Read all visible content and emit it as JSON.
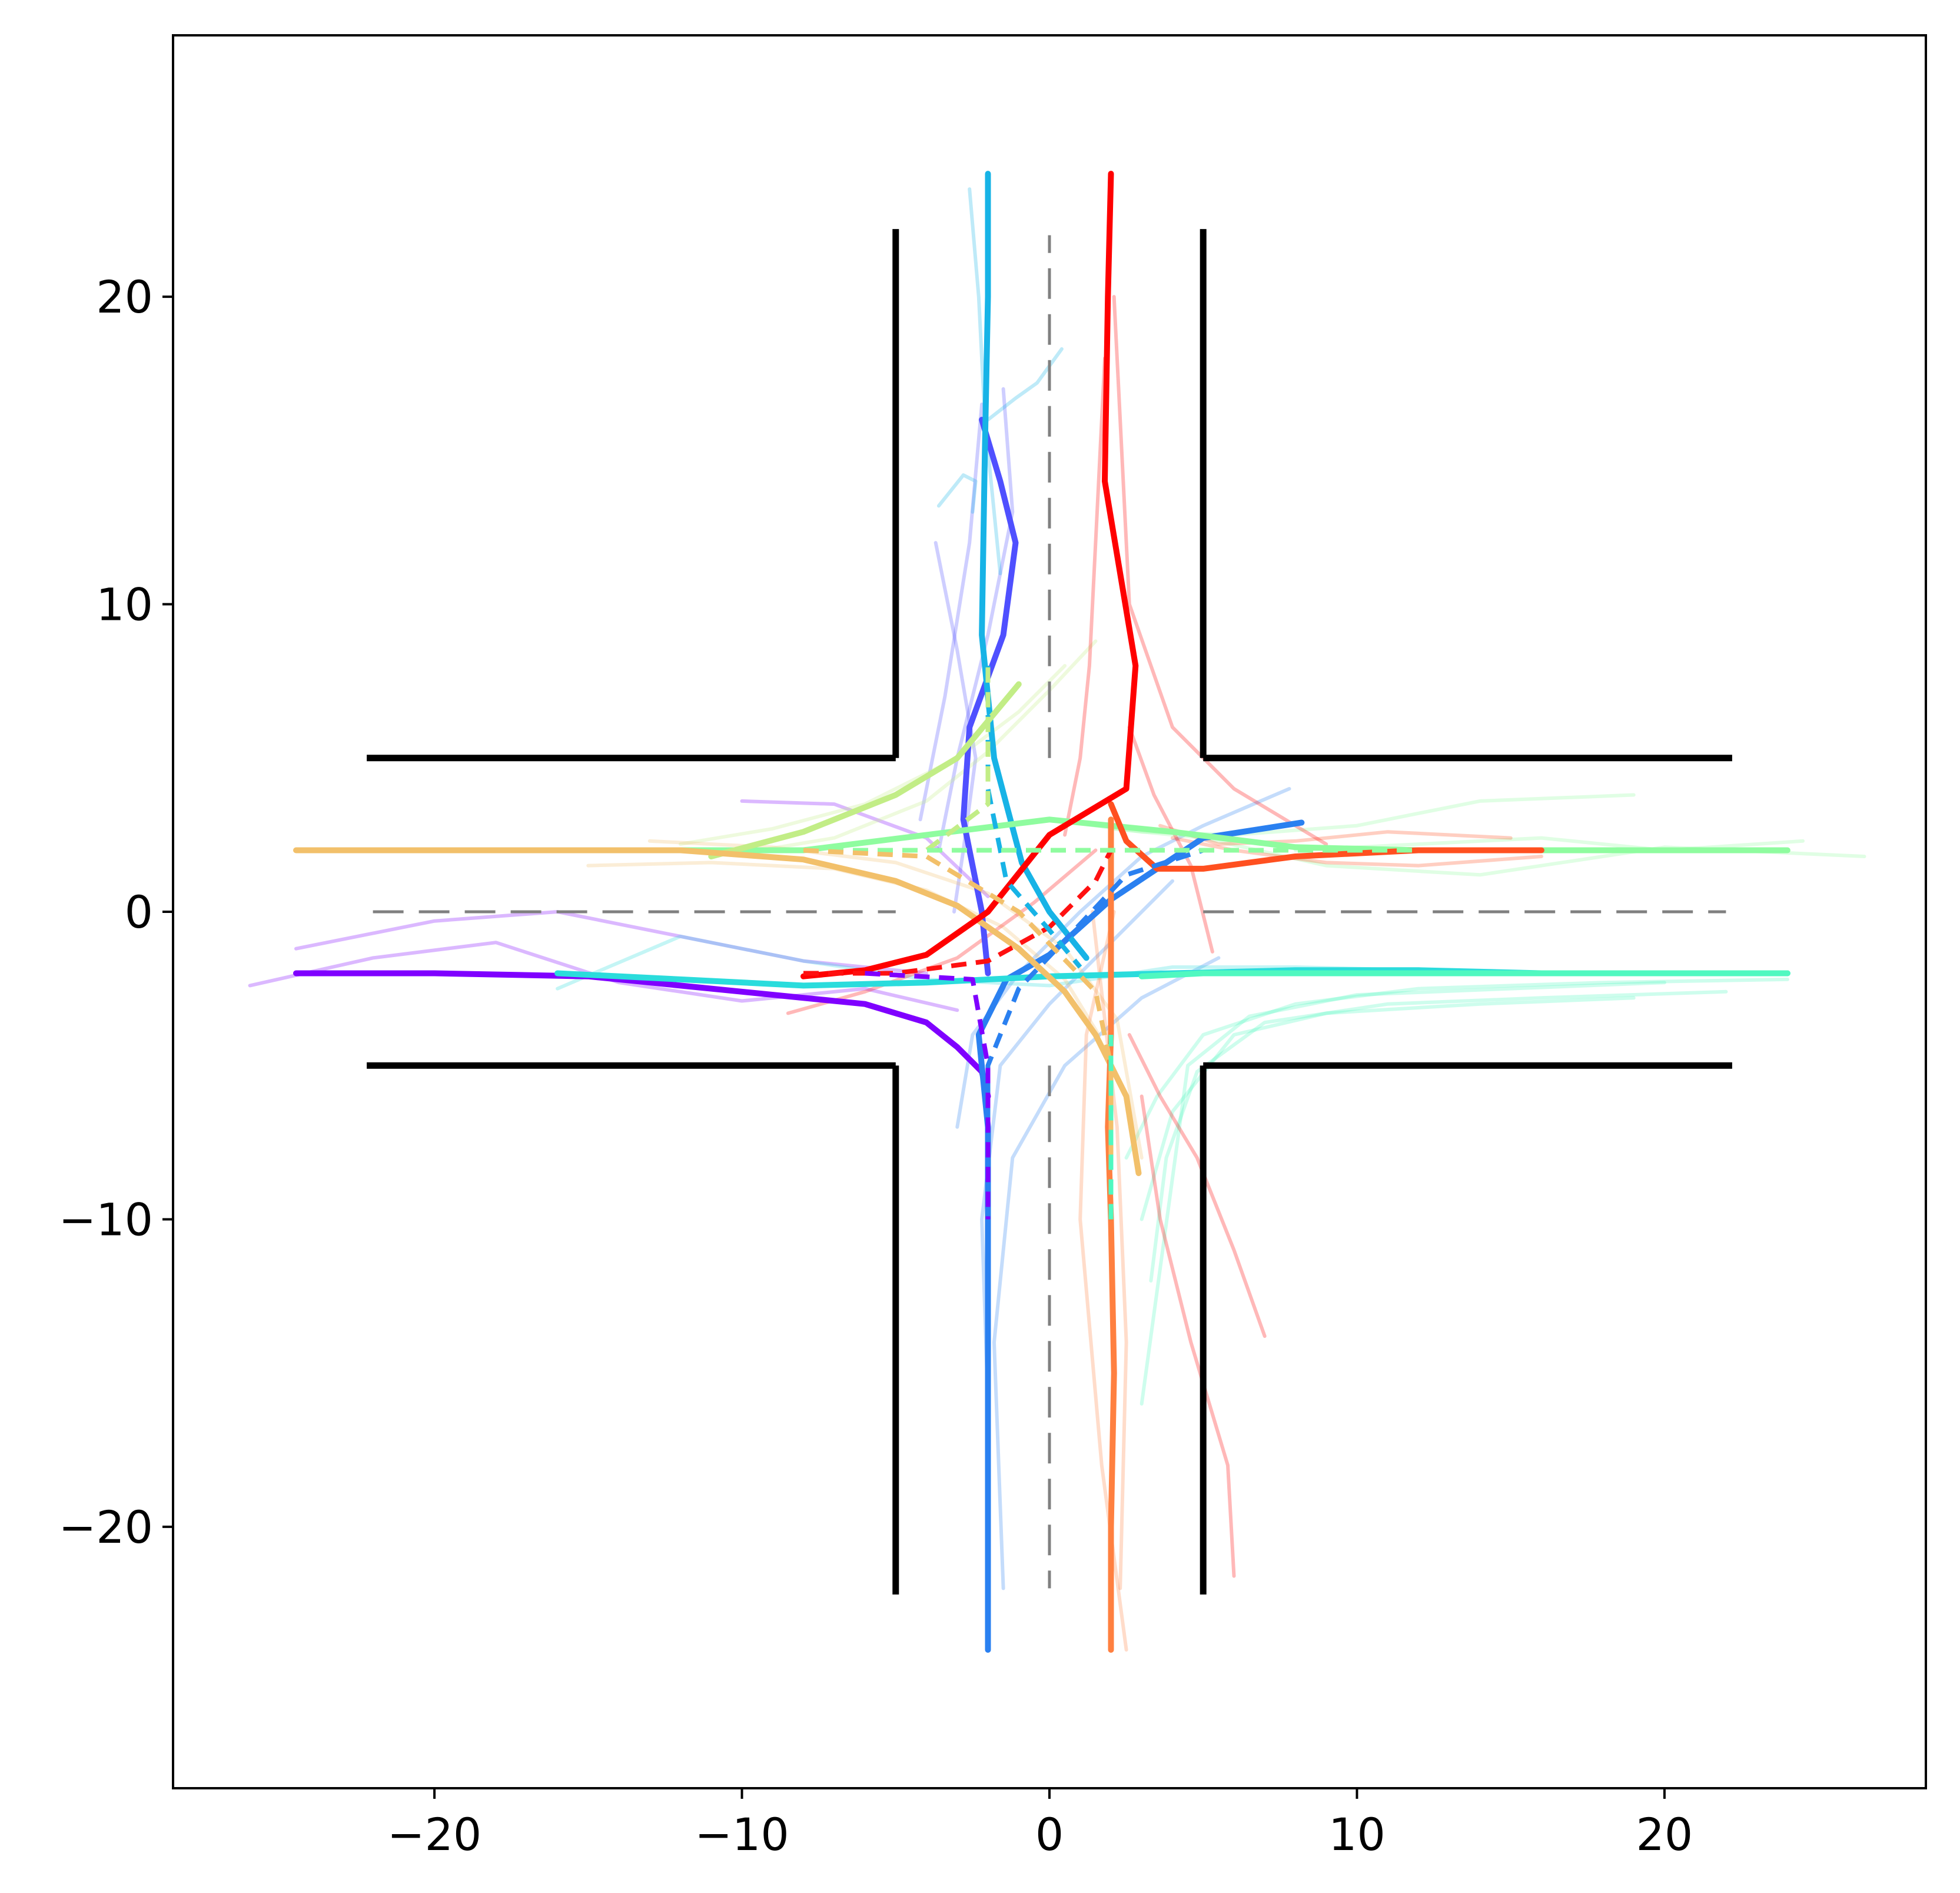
{
  "chart_data": {
    "type": "line",
    "title": "",
    "xlabel": "",
    "ylabel": "",
    "xlim": [
      -28.5,
      28.5
    ],
    "ylim": [
      -28.5,
      28.5
    ],
    "grid": false,
    "legend": "none",
    "x_ticks": [
      {
        "value": -20,
        "label": "−20"
      },
      {
        "value": -10,
        "label": "−10"
      },
      {
        "value": 0,
        "label": "0"
      },
      {
        "value": 10,
        "label": "10"
      },
      {
        "value": 20,
        "label": "20"
      }
    ],
    "y_ticks": [
      {
        "value": 20,
        "label": "20"
      },
      {
        "value": 10,
        "label": "10"
      },
      {
        "value": 0,
        "label": "0"
      },
      {
        "value": -10,
        "label": "−10"
      },
      {
        "value": -20,
        "label": "−20"
      }
    ],
    "road_boundaries": [
      {
        "name": "northwest-horizontal",
        "x": [
          -22.2,
          -5
        ],
        "y": [
          5,
          5
        ]
      },
      {
        "name": "northwest-vertical",
        "x": [
          -5,
          -5
        ],
        "y": [
          5,
          22.2
        ]
      },
      {
        "name": "northeast-horizontal",
        "x": [
          5,
          22.2
        ],
        "y": [
          5,
          5
        ]
      },
      {
        "name": "northeast-vertical",
        "x": [
          5,
          5
        ],
        "y": [
          5,
          22.2
        ]
      },
      {
        "name": "southwest-horizontal",
        "x": [
          -22.2,
          -5
        ],
        "y": [
          -5,
          -5
        ]
      },
      {
        "name": "southwest-vertical",
        "x": [
          -5,
          -5
        ],
        "y": [
          -5,
          -22.2
        ]
      },
      {
        "name": "southeast-horizontal",
        "x": [
          5,
          22.2
        ],
        "y": [
          -5,
          -5
        ]
      },
      {
        "name": "southeast-vertical",
        "x": [
          5,
          5
        ],
        "y": [
          -5,
          -22.2
        ]
      }
    ],
    "center_lines": [
      {
        "name": "center-line-west",
        "x": [
          -22,
          -5
        ],
        "y": [
          0,
          0
        ]
      },
      {
        "name": "center-line-east",
        "x": [
          5,
          22
        ],
        "y": [
          0,
          0
        ]
      },
      {
        "name": "center-line-north",
        "x": [
          0,
          0
        ],
        "y": [
          5,
          22
        ]
      },
      {
        "name": "center-line-south",
        "x": [
          0,
          0
        ],
        "y": [
          -5,
          -22
        ]
      }
    ],
    "series": [
      {
        "color": "#7f00ff",
        "x": [
          -24.5,
          -20,
          -15,
          -10,
          -6,
          -4,
          -3,
          -2.2,
          -2
        ],
        "y": [
          -2,
          -2,
          -2.1,
          -2.6,
          -3,
          -3.6,
          -4.4,
          -5.2,
          -6
        ]
      },
      {
        "color": "#4f50ff",
        "x": [
          -2,
          -2.2,
          -2.8,
          -2.6,
          -1.5,
          -1.1,
          -1.6,
          -2.2
        ],
        "y": [
          -2,
          0,
          3,
          6,
          9,
          12,
          14,
          16
        ]
      },
      {
        "color": "#2a80f0",
        "x": [
          -2,
          -2,
          -2,
          -2,
          -2,
          -2.3,
          -1.4,
          0,
          2,
          5,
          8.2
        ],
        "y": [
          -24,
          -20,
          -15,
          -10,
          -7,
          -4,
          -2.2,
          -1.4,
          0.4,
          2.4,
          2.9
        ]
      },
      {
        "color": "#17b3e6",
        "x": [
          -2,
          -2,
          -2.1,
          -2.2,
          -1.8,
          -0.9,
          0,
          1.2
        ],
        "y": [
          24,
          20,
          15,
          9,
          5,
          1.6,
          0,
          -1.5
        ]
      },
      {
        "color": "#2adcdc",
        "x": [
          -16,
          -12,
          -8,
          -4,
          0,
          4,
          8,
          12,
          16,
          20,
          24
        ],
        "y": [
          -2,
          -2.2,
          -2.4,
          -2.3,
          -2.1,
          -2,
          -1.9,
          -1.9,
          -2,
          -2,
          -2
        ]
      },
      {
        "color": "#50f8c0",
        "x": [
          24,
          20,
          16,
          12,
          8,
          5,
          3
        ],
        "y": [
          -2,
          -2,
          -2,
          -2,
          -2,
          -2,
          -2.1
        ]
      },
      {
        "color": "#8ffc9f",
        "x": [
          -12,
          -8,
          -4,
          0,
          4,
          8,
          12,
          16,
          20,
          24
        ],
        "y": [
          2,
          2,
          2.5,
          3,
          2.6,
          2.1,
          2,
          2,
          2,
          2
        ]
      },
      {
        "color": "#c2ed86",
        "x": [
          -11,
          -8,
          -5,
          -3,
          -2,
          -1
        ],
        "y": [
          1.8,
          2.6,
          3.8,
          5,
          6.2,
          7.4
        ]
      },
      {
        "color": "#f2c06a",
        "x": [
          -24.5,
          -20,
          -15,
          -12,
          -8,
          -5,
          -3,
          -1,
          0.5,
          1.5,
          2.5,
          2.9
        ],
        "y": [
          2,
          2,
          2,
          2,
          1.7,
          1,
          0.2,
          -1.2,
          -2.6,
          -4,
          -6,
          -8.5
        ]
      },
      {
        "color": "#ff8040",
        "x": [
          2,
          2,
          2.1,
          2,
          1.9,
          2,
          2,
          2
        ],
        "y": [
          -24,
          -20,
          -15,
          -10,
          -7,
          -4,
          -1,
          3
        ]
      },
      {
        "color": "#ff5020",
        "x": [
          16,
          12,
          8,
          5,
          3.5,
          2.5,
          2
        ],
        "y": [
          2,
          2,
          1.8,
          1.4,
          1.4,
          2.3,
          3.5
        ]
      },
      {
        "color": "#ff0000",
        "x": [
          2,
          1.9,
          1.8,
          2.8,
          2.5,
          0,
          -2,
          -4,
          -6,
          -8
        ],
        "y": [
          24,
          20,
          14,
          8,
          4,
          2.5,
          0,
          -1.4,
          -1.9,
          -2.1
        ]
      }
    ],
    "reference_paths": [
      {
        "color": "#ff1010",
        "x": [
          -8,
          -5,
          -2,
          0,
          1.5,
          2
        ],
        "y": [
          -2,
          -2,
          -1.6,
          -0.5,
          1,
          2
        ]
      },
      {
        "color": "#ff8040",
        "x": [
          2,
          2,
          2
        ],
        "y": [
          -10,
          -3,
          3
        ]
      },
      {
        "color": "#2a80f0",
        "x": [
          -2,
          -2,
          -1,
          1,
          2.5,
          5
        ],
        "y": [
          -10,
          -5,
          -2.5,
          -0.4,
          1.2,
          2
        ]
      },
      {
        "color": "#17b3e6",
        "x": [
          -2,
          -2,
          -1.4,
          0,
          1
        ],
        "y": [
          8,
          4,
          1,
          -0.6,
          -1.8
        ]
      },
      {
        "color": "#c2ed86",
        "x": [
          -8,
          -4,
          -2,
          -2
        ],
        "y": [
          2,
          2,
          3.5,
          8
        ]
      },
      {
        "color": "#8ffc9f",
        "x": [
          -8,
          0,
          8,
          12
        ],
        "y": [
          2,
          2,
          2,
          2
        ]
      },
      {
        "color": "#f2c06a",
        "x": [
          -8,
          -4,
          -1,
          1.5,
          2,
          2
        ],
        "y": [
          2,
          1.8,
          0,
          -2.6,
          -5,
          -8
        ]
      },
      {
        "color": "#50f8c0",
        "x": [
          2,
          2
        ],
        "y": [
          -10,
          -4
        ]
      },
      {
        "color": "#7f00ff",
        "x": [
          -6,
          -2.5,
          -2,
          -2
        ],
        "y": [
          -2,
          -2.2,
          -5,
          -10
        ]
      }
    ],
    "sample_trajectories": [
      {
        "color": "#7f00ff",
        "x": [
          -26,
          -22,
          -18,
          -14,
          -10,
          -6,
          -3
        ],
        "y": [
          -2.4,
          -1.5,
          -1,
          -2.3,
          -2.9,
          -2.5,
          -3.2
        ]
      },
      {
        "color": "#7f00ff",
        "x": [
          -24.5,
          -20,
          -16,
          -12,
          -8,
          -4
        ],
        "y": [
          -1.2,
          -0.3,
          0,
          -0.8,
          -1.6,
          -2
        ]
      },
      {
        "color": "#7f00ff",
        "x": [
          -10,
          -7,
          -4,
          -2
        ],
        "y": [
          3.6,
          3.5,
          2.4,
          0.5
        ]
      },
      {
        "color": "#4f50ff",
        "x": [
          -1.5,
          -1.2,
          -2,
          -3,
          -3.6
        ],
        "y": [
          17,
          13,
          9,
          5,
          2
        ]
      },
      {
        "color": "#4f50ff",
        "x": [
          -3.7,
          -3,
          -2.4,
          -2.8,
          -3.1
        ],
        "y": [
          12,
          8.5,
          5,
          2,
          0
        ]
      },
      {
        "color": "#4f50ff",
        "x": [
          -2.2,
          -2.6,
          -3.4,
          -4.2
        ],
        "y": [
          16.5,
          12,
          7,
          3
        ]
      },
      {
        "color": "#2a80f0",
        "x": [
          -3,
          -2.5,
          -1,
          1,
          3,
          5,
          7.8
        ],
        "y": [
          -7,
          -4,
          -2,
          0,
          1.8,
          2.8,
          4
        ]
      },
      {
        "color": "#2a80f0",
        "x": [
          -2,
          -2.2,
          -1.6,
          0,
          2,
          4
        ],
        "y": [
          -16,
          -10,
          -5,
          -3,
          -1,
          1
        ]
      },
      {
        "color": "#2a80f0",
        "x": [
          -1.5,
          -1.8,
          -1.2,
          0.5,
          3,
          5.5
        ],
        "y": [
          -22,
          -14,
          -8,
          -5,
          -2.8,
          -1.5
        ]
      },
      {
        "color": "#17b3e6",
        "x": [
          -2.6,
          -2.3,
          -2.1,
          -1.6
        ],
        "y": [
          23.5,
          20,
          16,
          11
        ]
      },
      {
        "color": "#17b3e6",
        "x": [
          0.4,
          -0.4,
          -1.1,
          -2
        ],
        "y": [
          18.3,
          17.2,
          16.7,
          16
        ]
      },
      {
        "color": "#17b3e6",
        "x": [
          -3.6,
          -2.8,
          -2.4,
          -2.5
        ],
        "y": [
          13.2,
          14.2,
          14,
          13
        ]
      },
      {
        "color": "#2adcdc",
        "x": [
          -16,
          -12,
          -8,
          -4,
          0,
          4,
          8,
          12
        ],
        "y": [
          -2.5,
          -0.8,
          -1.6,
          -2.2,
          -2.4,
          -1.8,
          -1.8,
          -1.9
        ]
      },
      {
        "color": "#50f8c0",
        "x": [
          24,
          18,
          12,
          8,
          5,
          3.5,
          2.5
        ],
        "y": [
          -2.2,
          -2.3,
          -2.5,
          -3,
          -4,
          -6,
          -8
        ]
      },
      {
        "color": "#50f8c0",
        "x": [
          22,
          16,
          11,
          7,
          4.8,
          3.8,
          3.3
        ],
        "y": [
          -2.6,
          -2.8,
          -3,
          -3.6,
          -5.2,
          -8,
          -12
        ]
      },
      {
        "color": "#50f8c0",
        "x": [
          20,
          15,
          10,
          6.5,
          4.5,
          3
        ],
        "y": [
          -2.3,
          -2.5,
          -2.7,
          -3.4,
          -5,
          -16
        ]
      },
      {
        "color": "#50f8c0",
        "x": [
          19,
          14,
          9,
          6,
          4,
          3
        ],
        "y": [
          -2.8,
          -3,
          -3.3,
          -4,
          -6.5,
          -10
        ]
      },
      {
        "color": "#8ffc9f",
        "x": [
          19,
          14,
          10,
          6,
          3,
          0
        ],
        "y": [
          3.8,
          3.6,
          2.8,
          2.5,
          2.6,
          3
        ]
      },
      {
        "color": "#8ffc9f",
        "x": [
          26.5,
          20,
          14,
          9,
          5,
          2
        ],
        "y": [
          1.8,
          2.1,
          1.2,
          1.5,
          2.4,
          2.7
        ]
      },
      {
        "color": "#8ffc9f",
        "x": [
          24.5,
          20,
          16,
          12,
          8
        ],
        "y": [
          2.3,
          2,
          2.4,
          2.2,
          2
        ]
      },
      {
        "color": "#c2ed86",
        "x": [
          -12,
          -9,
          -6,
          -3,
          -1,
          0.5
        ],
        "y": [
          2.2,
          2.7,
          3.5,
          5,
          6.5,
          8
        ]
      },
      {
        "color": "#c2ed86",
        "x": [
          -10,
          -7,
          -4,
          -2,
          0,
          1.5
        ],
        "y": [
          1.9,
          2.4,
          3.6,
          5.2,
          7.2,
          8.8
        ]
      },
      {
        "color": "#f2c06a",
        "x": [
          -15,
          -11,
          -7,
          -4,
          -1.5,
          0.5,
          1.6
        ],
        "y": [
          1.5,
          1.6,
          1.4,
          0.7,
          -0.5,
          -2.2,
          -4
        ]
      },
      {
        "color": "#f2c06a",
        "x": [
          -13,
          -9,
          -5,
          -2,
          0.5,
          2.2,
          3
        ],
        "y": [
          2.3,
          2.1,
          1.6,
          0.6,
          -1.2,
          -3.5,
          -8
        ]
      },
      {
        "color": "#ff8040",
        "x": [
          2.5,
          1.7,
          1,
          1.2,
          2.1
        ],
        "y": [
          -24,
          -18,
          -10,
          -4,
          0
        ]
      },
      {
        "color": "#ff8040",
        "x": [
          2.3,
          2.5,
          2.2,
          1.4
        ],
        "y": [
          -22,
          -14,
          -7,
          0
        ]
      },
      {
        "color": "#ff5020",
        "x": [
          15,
          11,
          8,
          5.5,
          3.6
        ],
        "y": [
          2.4,
          2.6,
          2.3,
          2.2,
          2.8
        ]
      },
      {
        "color": "#ff5020",
        "x": [
          16,
          12,
          9,
          6,
          4
        ],
        "y": [
          1.8,
          1.5,
          1.6,
          2,
          2.4
        ]
      },
      {
        "color": "#ff0000",
        "x": [
          1.8,
          1.5,
          1.3,
          1,
          0.5
        ],
        "y": [
          18,
          12,
          8,
          5,
          2.5
        ]
      },
      {
        "color": "#ff0000",
        "x": [
          -8.5,
          -6,
          -3,
          -0.5,
          1.5
        ],
        "y": [
          -3.3,
          -2.6,
          -1.5,
          0.3,
          2
        ]
      },
      {
        "color": "#ff0000",
        "x": [
          2.1,
          2.6,
          4,
          6,
          9
        ],
        "y": [
          20,
          10,
          6,
          4,
          2.2
        ]
      },
      {
        "color": "#ff0000",
        "x": [
          6,
          5.8,
          4.6,
          3.6,
          3
        ],
        "y": [
          -21.6,
          -18,
          -14,
          -10,
          -6
        ]
      },
      {
        "color": "#ff0000",
        "x": [
          7,
          6,
          4.8,
          3.6,
          2.6
        ],
        "y": [
          -13.8,
          -11,
          -8,
          -6,
          -4
        ]
      },
      {
        "color": "#ff0000",
        "x": [
          5.3,
          4.6,
          3.4,
          2.6
        ],
        "y": [
          -1.3,
          1.5,
          3.8,
          6
        ]
      }
    ]
  }
}
